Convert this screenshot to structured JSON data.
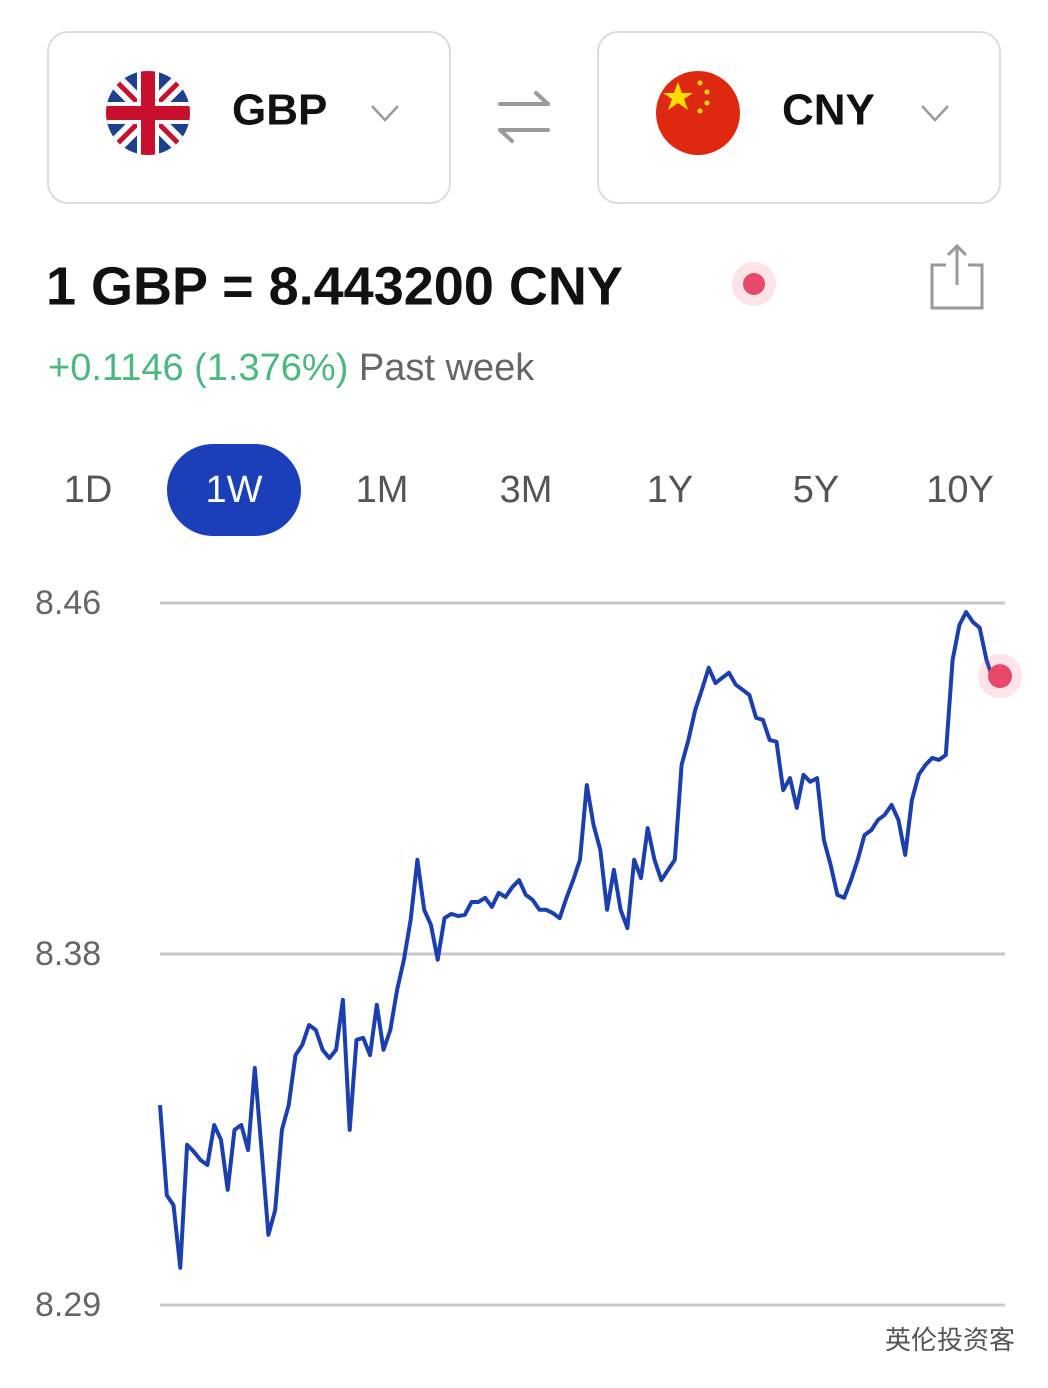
{
  "from_currency": "GBP",
  "to_currency": "CNY",
  "rate": "1 GBP = 8.443200 CNY",
  "change": "+0.1146 (1.376%)",
  "change_period": "Past week",
  "tabs": [
    "1D",
    "1W",
    "1M",
    "3M",
    "1Y",
    "5Y",
    "10Y"
  ],
  "active_tab": 1,
  "watermark": "英伦投资客",
  "chart_data": {
    "type": "line",
    "color": "#1b3fae",
    "marker_color": "#e8496a",
    "grid": true,
    "ylim": [
      8.29,
      8.46
    ],
    "yticks": [
      8.29,
      {
        "value": 8.375,
        "label": "8.38"
      },
      8.46
    ],
    "values": [
      8.3384,
      8.3166,
      8.3142,
      8.299,
      8.3288,
      8.3271,
      8.3251,
      8.3239,
      8.3336,
      8.33,
      8.3179,
      8.3324,
      8.3336,
      8.3275,
      8.3474,
      8.3275,
      8.307,
      8.313,
      8.3324,
      8.3384,
      8.3505,
      8.353,
      8.3578,
      8.3566,
      8.3518,
      8.3498,
      8.3518,
      8.3639,
      8.3324,
      8.3542,
      8.3547,
      8.3505,
      8.3627,
      8.3518,
      8.3566,
      8.3663,
      8.3736,
      8.3832,
      8.3978,
      8.3857,
      8.382,
      8.3736,
      8.3837,
      8.3847,
      8.3842,
      8.3845,
      8.3876,
      8.3876,
      8.3886,
      8.3864,
      8.3898,
      8.3888,
      8.3912,
      8.3929,
      8.3893,
      8.3881,
      8.3857,
      8.3857,
      8.3849,
      8.3837,
      8.3886,
      8.3929,
      8.3978,
      8.4159,
      8.4063,
      8.4002,
      8.3857,
      8.3954,
      8.3857,
      8.3813,
      8.3978,
      8.3934,
      8.4055,
      8.3978,
      8.3929,
      8.3954,
      8.3978,
      8.4208,
      8.4268,
      8.4341,
      8.439,
      8.4443,
      8.4406,
      8.4419,
      8.4431,
      8.4402,
      8.439,
      8.4377,
      8.4322,
      8.4317,
      8.4268,
      8.4264,
      8.4147,
      8.4176,
      8.4104,
      8.4184,
      8.4167,
      8.4176,
      8.4026,
      8.3966,
      8.3893,
      8.3886,
      8.3929,
      8.3978,
      8.4038,
      8.405,
      8.4075,
      8.4087,
      8.4111,
      8.4075,
      8.399,
      8.4123,
      8.4184,
      8.4208,
      8.4225,
      8.422,
      8.4232,
      8.4462,
      8.4547,
      8.4578,
      8.4554,
      8.454,
      8.4462,
      8.4414,
      8.4423
    ]
  }
}
